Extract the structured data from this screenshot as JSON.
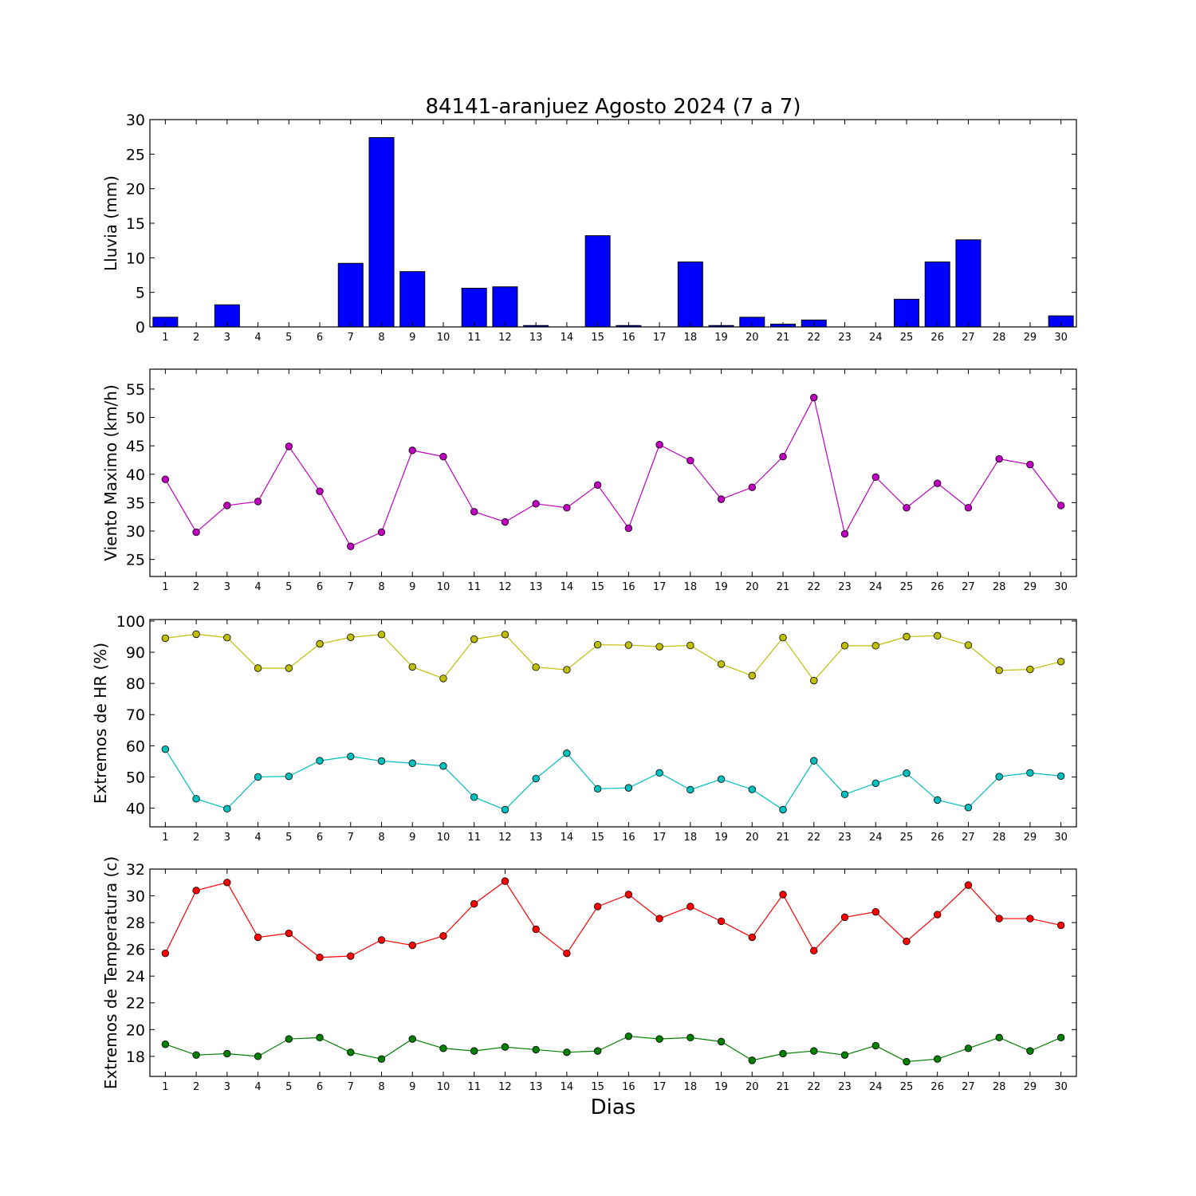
{
  "title": "84141-aranjuez Agosto 2024  (7 a 7)",
  "xlabel": "Dias",
  "chart_data": [
    {
      "type": "bar",
      "ylabel": "Lluvia (mm)",
      "x": [
        1,
        2,
        3,
        4,
        5,
        6,
        7,
        8,
        9,
        10,
        11,
        12,
        13,
        14,
        15,
        16,
        17,
        18,
        19,
        20,
        21,
        22,
        23,
        24,
        25,
        26,
        27,
        28,
        29,
        30
      ],
      "ylim": [
        0,
        30
      ],
      "yticks": [
        0,
        5,
        10,
        15,
        20,
        25,
        30
      ],
      "series": [
        {
          "color": "#0000ff",
          "values": [
            1.4,
            0,
            3.2,
            0,
            0,
            0,
            9.2,
            27.4,
            8.0,
            0,
            5.6,
            5.8,
            0.2,
            0,
            13.2,
            0.2,
            0,
            9.4,
            0.2,
            1.4,
            0.4,
            1.0,
            0,
            0,
            4.0,
            9.4,
            12.6,
            0,
            0,
            1.6
          ]
        }
      ]
    },
    {
      "type": "line",
      "ylabel": "Viento Maximo (km/h)",
      "x": [
        1,
        2,
        3,
        4,
        5,
        6,
        7,
        8,
        9,
        10,
        11,
        12,
        13,
        14,
        15,
        16,
        17,
        18,
        19,
        20,
        21,
        22,
        23,
        24,
        25,
        26,
        27,
        28,
        29,
        30
      ],
      "ylim": [
        22,
        58.5
      ],
      "yticks": [
        25,
        30,
        35,
        40,
        45,
        50,
        55
      ],
      "series": [
        {
          "color": "#bf00bf",
          "values": [
            39.1,
            29.8,
            34.5,
            35.2,
            44.9,
            37.0,
            27.3,
            29.8,
            44.2,
            43.1,
            33.4,
            31.6,
            34.8,
            34.1,
            38.1,
            30.5,
            45.2,
            42.4,
            35.6,
            37.7,
            43.1,
            53.5,
            29.5,
            39.5,
            34.1,
            38.4,
            34.1,
            42.7,
            41.7,
            34.5
          ]
        }
      ]
    },
    {
      "type": "line",
      "ylabel": "Extremos de HR (%)",
      "x": [
        1,
        2,
        3,
        4,
        5,
        6,
        7,
        8,
        9,
        10,
        11,
        12,
        13,
        14,
        15,
        16,
        17,
        18,
        19,
        20,
        21,
        22,
        23,
        24,
        25,
        26,
        27,
        28,
        29,
        30
      ],
      "ylim": [
        34,
        100.5
      ],
      "yticks": [
        40,
        50,
        60,
        70,
        80,
        90,
        100
      ],
      "series": [
        {
          "color": "#bfbf00",
          "values": [
            94.5,
            95.8,
            94.7,
            84.9,
            84.9,
            92.7,
            94.8,
            95.7,
            85.3,
            81.6,
            94.2,
            95.7,
            85.2,
            84.4,
            92.4,
            92.3,
            91.8,
            92.2,
            86.2,
            82.5,
            94.7,
            80.9,
            92.1,
            92.1,
            95.0,
            95.3,
            92.3,
            84.2,
            84.5,
            87.0
          ]
        },
        {
          "color": "#00bfbf",
          "values": [
            58.9,
            43.0,
            39.8,
            50.0,
            50.2,
            55.2,
            56.6,
            55.1,
            54.4,
            53.5,
            43.5,
            39.5,
            49.5,
            57.6,
            46.2,
            46.5,
            51.3,
            45.9,
            49.3,
            46.0,
            39.5,
            55.2,
            44.4,
            48.0,
            51.2,
            42.6,
            40.2,
            50.1,
            51.3,
            50.3
          ]
        }
      ]
    },
    {
      "type": "line",
      "ylabel": "Extremos de Temperatura (c)",
      "x": [
        1,
        2,
        3,
        4,
        5,
        6,
        7,
        8,
        9,
        10,
        11,
        12,
        13,
        14,
        15,
        16,
        17,
        18,
        19,
        20,
        21,
        22,
        23,
        24,
        25,
        26,
        27,
        28,
        29,
        30
      ],
      "ylim": [
        16.5,
        32
      ],
      "yticks": [
        18,
        20,
        22,
        24,
        26,
        28,
        30,
        32
      ],
      "series": [
        {
          "color": "#ff0000",
          "values": [
            25.7,
            30.4,
            31.0,
            26.9,
            27.2,
            25.4,
            25.5,
            26.7,
            26.3,
            27.0,
            29.4,
            31.1,
            27.5,
            25.7,
            29.2,
            30.1,
            28.3,
            29.2,
            28.1,
            26.9,
            30.1,
            25.9,
            28.4,
            28.8,
            26.6,
            28.6,
            30.8,
            28.3,
            28.3,
            27.8
          ]
        },
        {
          "color": "#008000",
          "values": [
            18.9,
            18.1,
            18.2,
            18.0,
            19.3,
            19.4,
            18.3,
            17.8,
            19.3,
            18.6,
            18.4,
            18.7,
            18.5,
            18.3,
            18.4,
            19.5,
            19.3,
            19.4,
            19.1,
            17.7,
            18.2,
            18.4,
            18.1,
            18.8,
            17.6,
            17.8,
            18.6,
            19.4,
            18.4,
            19.4
          ]
        }
      ]
    }
  ]
}
